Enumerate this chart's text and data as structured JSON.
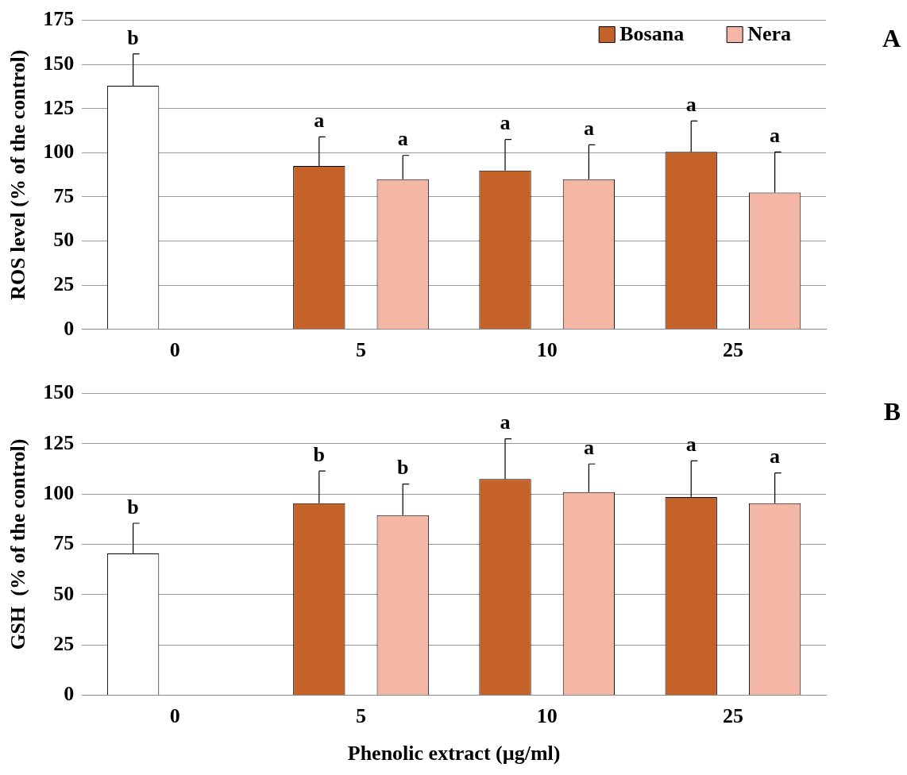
{
  "chart_data": [
    {
      "type": "bar",
      "ylabel": "ROS level (% of the control)",
      "categories": [
        "0",
        "5",
        "10",
        "25"
      ],
      "series": [
        {
          "name": "Bosana",
          "color": "#c4622a",
          "colors": [
            "#ffffff",
            "#c4622a",
            "#c4622a",
            "#c4622a"
          ],
          "values": [
            138,
            92.5,
            90,
            100.5
          ],
          "errors": [
            [
              138,
              156
            ],
            [
              92.5,
              109
            ],
            [
              90,
              107.5
            ],
            [
              100.5,
              118
            ]
          ],
          "value_labels": [
            "b",
            "a",
            "a",
            "a"
          ]
        },
        {
          "name": "Nera",
          "color": "#f4b7a5",
          "values": [
            null,
            85,
            85,
            77.5
          ],
          "errors": [
            null,
            [
              85,
              98.5
            ],
            [
              85,
              104.5
            ],
            [
              77.5,
              100.5
            ]
          ],
          "value_labels": [
            null,
            "a",
            "a",
            "a"
          ]
        }
      ],
      "ylim": [
        0,
        175
      ],
      "yticks": [
        0,
        25,
        50,
        75,
        100,
        125,
        150,
        175
      ],
      "grid": "y",
      "legend": "top right",
      "annotations": [
        "A"
      ]
    },
    {
      "type": "bar",
      "ylabel": "GSH  (% of the control)",
      "xlabel": "Phenolic extract (µg/ml)",
      "categories": [
        "0",
        "5",
        "10",
        "25"
      ],
      "series": [
        {
          "color": "#c4622a",
          "colors": [
            "#ffffff",
            "#c4622a",
            "#c4622a",
            "#c4622a"
          ],
          "values": [
            70.5,
            95.5,
            107.5,
            98.5
          ],
          "errors": [
            [
              70.5,
              85.5
            ],
            [
              95.5,
              111.5
            ],
            [
              107.5,
              127.5
            ],
            [
              98.5,
              116.5
            ]
          ],
          "value_labels": [
            "b",
            "b",
            "a",
            "a"
          ]
        },
        {
          "color": "#f4b7a5",
          "values": [
            null,
            89.5,
            101,
            95.5
          ],
          "errors": [
            null,
            [
              89.5,
              105
            ],
            [
              101,
              115
            ],
            [
              95.5,
              110.5
            ]
          ],
          "value_labels": [
            null,
            "b",
            "a",
            "a"
          ]
        }
      ],
      "ylim": [
        0,
        150
      ],
      "yticks": [
        0,
        25,
        50,
        75,
        100,
        125,
        150
      ],
      "grid": "y",
      "legend": false,
      "annotations": [
        "B"
      ]
    }
  ]
}
